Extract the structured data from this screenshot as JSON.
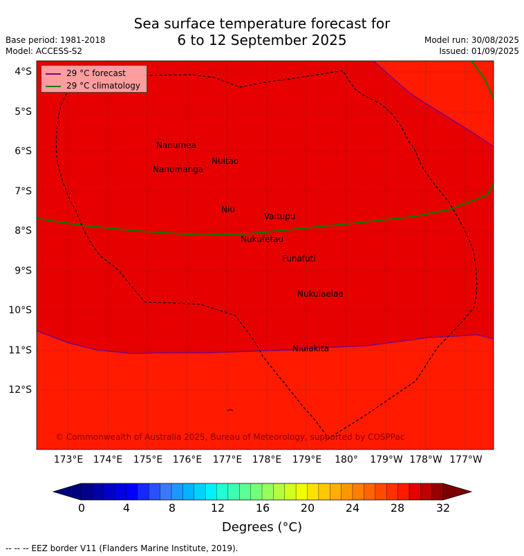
{
  "header": {
    "title_line1": "Sea surface temperature forecast for",
    "title_line2": "6 to 12 September 2025",
    "base_period": "Base period: 1981-2018",
    "model": "Model: ACCESS-S2",
    "model_run": "Model run: 30/08/2025",
    "issued": "Issued: 01/09/2025"
  },
  "legend": {
    "forecast_label": "29 °C  forecast",
    "forecast_color": "#800080",
    "climatology_label": "29 °C  climatology",
    "climatology_color": "#008000"
  },
  "map": {
    "lat_labels": [
      "4°S",
      "5°S",
      "6°S",
      "7°S",
      "8°S",
      "9°S",
      "10°S",
      "11°S",
      "12°S"
    ],
    "lon_labels": [
      "173°E",
      "174°E",
      "175°E",
      "176°E",
      "177°E",
      "178°E",
      "179°E",
      "180°",
      "179°W",
      "178°W",
      "177°W"
    ],
    "islands": [
      "Nanumea",
      "Nuitao",
      "Nanumanga",
      "Niu",
      "Vaitupu",
      "Nukufetau",
      "Funafuti",
      "Nukulaelae",
      "Niulakita"
    ],
    "region_colors": {
      "warm_29_30": "#e60000",
      "warm_28_29": "#ff1a00"
    },
    "copyright": "© Commonwealth of Australia 2025, Bureau of Meteorology, supported by COSPPac"
  },
  "colorbar": {
    "tick_labels": [
      "0",
      "4",
      "8",
      "12",
      "16",
      "20",
      "24",
      "28",
      "32"
    ],
    "label": "Degrees (°C)",
    "colors": [
      "#00008c",
      "#0000a8",
      "#0000c8",
      "#0000e6",
      "#0000ff",
      "#1428ff",
      "#2850ff",
      "#3c78ff",
      "#1e96ff",
      "#00b4ff",
      "#00d2ff",
      "#00f0ff",
      "#1effd2",
      "#3cffb4",
      "#5aff96",
      "#78ff78",
      "#96ff5a",
      "#b4ff3c",
      "#d2ff1e",
      "#f0ff00",
      "#ffe100",
      "#ffc800",
      "#ffaf00",
      "#ff9600",
      "#ff7d00",
      "#ff6400",
      "#ff4b00",
      "#ff3200",
      "#ff1a00",
      "#e60000",
      "#be0000",
      "#960000"
    ],
    "under_color": "#00007a",
    "over_color": "#7a0000"
  },
  "footer": {
    "text": "--  --  -- EEZ border V11 (Flanders Marine Institute, 2019)."
  }
}
